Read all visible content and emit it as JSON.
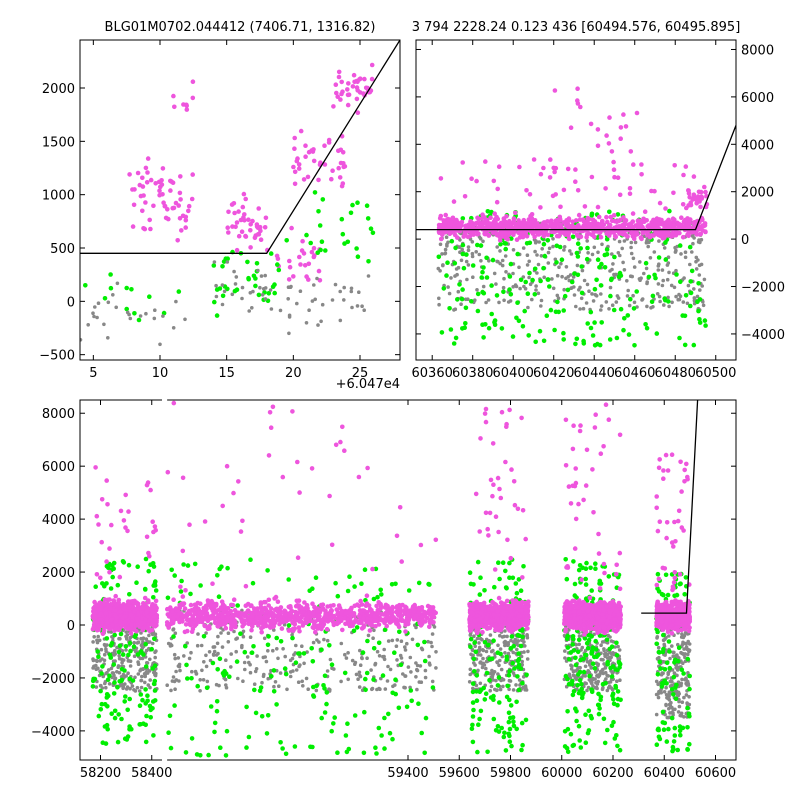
{
  "colors": {
    "series_magenta": "#ee55dd",
    "series_green": "#00ee00",
    "series_gray": "#888888",
    "model_line": "#000000",
    "background": "#ffffff"
  },
  "chart_data": [
    {
      "id": "zoom",
      "type": "scatter",
      "title": "BLG01M0702.044412 (7406.71, 1316.82)",
      "xlim": [
        4,
        28
      ],
      "ylim": [
        -550,
        2450
      ],
      "x_offset_label": "+6.047e4",
      "xticks": [
        5,
        10,
        15,
        20,
        25
      ],
      "yticks": [
        -500,
        0,
        500,
        1000,
        1500,
        2000
      ],
      "y_axis_side": "left",
      "model": [
        [
          4,
          450
        ],
        [
          18,
          450
        ],
        [
          28,
          2450
        ]
      ],
      "series": [
        {
          "color": "magenta",
          "clusters": [
            {
              "x": [
                7.5,
                12.5
              ],
              "y": [
                300,
                1600
              ],
              "n": 60
            },
            {
              "x": [
                11,
                12.5
              ],
              "y": [
                1500,
                2200
              ],
              "n": 8
            },
            {
              "x": [
                15,
                18
              ],
              "y": [
                300,
                1200
              ],
              "n": 40
            },
            {
              "x": [
                18,
                22
              ],
              "y": [
                -200,
                900
              ],
              "n": 25
            },
            {
              "x": [
                20,
                24
              ],
              "y": [
                900,
                1800
              ],
              "n": 40
            },
            {
              "x": [
                23,
                26
              ],
              "y": [
                1600,
                2400
              ],
              "n": 40
            }
          ]
        },
        {
          "color": "green",
          "clusters": [
            {
              "x": [
                4,
                12
              ],
              "y": [
                -450,
                450
              ],
              "n": 12
            },
            {
              "x": [
                14,
                19
              ],
              "y": [
                -400,
                900
              ],
              "n": 35
            },
            {
              "x": [
                19,
                26
              ],
              "y": [
                -200,
                1500
              ],
              "n": 25
            }
          ]
        },
        {
          "color": "gray",
          "clusters": [
            {
              "x": [
                4,
                12
              ],
              "y": [
                -550,
                300
              ],
              "n": 25
            },
            {
              "x": [
                14,
                20
              ],
              "y": [
                -500,
                700
              ],
              "n": 35
            },
            {
              "x": [
                20,
                26
              ],
              "y": [
                -500,
                500
              ],
              "n": 25
            }
          ]
        }
      ]
    },
    {
      "id": "recent",
      "type": "scatter",
      "title": "3 794 2228.24 0.123 436 [60494.576, 60495.895]",
      "xlim": [
        60352,
        60510
      ],
      "ylim": [
        -5100,
        8400
      ],
      "xticks": [
        60360,
        60380,
        60400,
        60420,
        60440,
        60460,
        60480,
        60500
      ],
      "yticks": [
        -4000,
        -2000,
        0,
        2000,
        4000,
        6000,
        8000
      ],
      "y_axis_side": "right",
      "model": [
        [
          60352,
          400
        ],
        [
          60490,
          400
        ],
        [
          60510,
          4800
        ]
      ],
      "series": [
        {
          "color": "gray",
          "clusters": [
            {
              "x": [
                60363,
                60495
              ],
              "y": [
                -3000,
                800
              ],
              "n": 450
            }
          ]
        },
        {
          "color": "green",
          "clusters": [
            {
              "x": [
                60363,
                60495
              ],
              "y": [
                -4500,
                1200
              ],
              "n": 260
            }
          ]
        },
        {
          "color": "magenta",
          "clusters": [
            {
              "x": [
                60363,
                60495
              ],
              "y": [
                -300,
                1300
              ],
              "n": 800
            },
            {
              "x": [
                60363,
                60495
              ],
              "y": [
                1000,
                3500
              ],
              "n": 60
            },
            {
              "x": [
                60420,
                60470
              ],
              "y": [
                3000,
                6500
              ],
              "n": 20
            },
            {
              "x": [
                60485,
                60496
              ],
              "y": [
                800,
                2500
              ],
              "n": 25
            }
          ]
        }
      ]
    },
    {
      "id": "full",
      "type": "scatter",
      "title": "",
      "xlim": [
        58120,
        60680
      ],
      "ylim": [
        -5100,
        8500
      ],
      "xticks": [
        58200,
        58400,
        59400,
        59600,
        59800,
        60000,
        60200,
        60400,
        60600
      ],
      "yticks": [
        -4000,
        -2000,
        0,
        2000,
        4000,
        6000,
        8000
      ],
      "y_axis_side": "left",
      "axis_gap": [
        58440,
        58460
      ],
      "model": [
        [
          60310,
          450
        ],
        [
          60487,
          450
        ],
        [
          60530,
          8500
        ]
      ],
      "seasons": [
        [
          58170,
          58420
        ],
        [
          58460,
          59510
        ],
        [
          59640,
          59870
        ],
        [
          60010,
          60230
        ],
        [
          60370,
          60500
        ]
      ],
      "series": [
        {
          "color": "gray",
          "clusters": [
            {
              "season": 0,
              "y": [
                -2500,
                600
              ],
              "n": 320
            },
            {
              "season": 1,
              "y": [
                -2500,
                600
              ],
              "n": 340
            },
            {
              "season": 2,
              "y": [
                -2500,
                600
              ],
              "n": 300
            },
            {
              "season": 3,
              "y": [
                -2500,
                600
              ],
              "n": 320
            },
            {
              "season": 4,
              "y": [
                -3500,
                600
              ],
              "n": 260
            }
          ]
        },
        {
          "color": "green",
          "clusters": [
            {
              "season": 0,
              "y": [
                -4500,
                2500
              ],
              "n": 160
            },
            {
              "season": 1,
              "y": [
                -5000,
                2500
              ],
              "n": 200
            },
            {
              "season": 2,
              "y": [
                -4800,
                2500
              ],
              "n": 150
            },
            {
              "season": 3,
              "y": [
                -4800,
                2500
              ],
              "n": 200
            },
            {
              "season": 4,
              "y": [
                -4800,
                2000
              ],
              "n": 100
            }
          ]
        },
        {
          "color": "magenta",
          "clusters": [
            {
              "season": 0,
              "y": [
                -600,
                1300
              ],
              "n": 900
            },
            {
              "season": 1,
              "y": [
                -600,
                1300
              ],
              "n": 900
            },
            {
              "season": 2,
              "y": [
                -600,
                1300
              ],
              "n": 800
            },
            {
              "season": 3,
              "y": [
                -600,
                1300
              ],
              "n": 900
            },
            {
              "season": 4,
              "y": [
                -600,
                1300
              ],
              "n": 600
            },
            {
              "season": 0,
              "y": [
                1300,
                6500
              ],
              "n": 30
            },
            {
              "season": 1,
              "y": [
                1300,
                8400
              ],
              "n": 40
            },
            {
              "season": 2,
              "y": [
                1300,
                8400
              ],
              "n": 35
            },
            {
              "season": 3,
              "y": [
                1300,
                8400
              ],
              "n": 40
            },
            {
              "season": 4,
              "y": [
                1300,
                6500
              ],
              "n": 40
            }
          ]
        }
      ]
    }
  ]
}
